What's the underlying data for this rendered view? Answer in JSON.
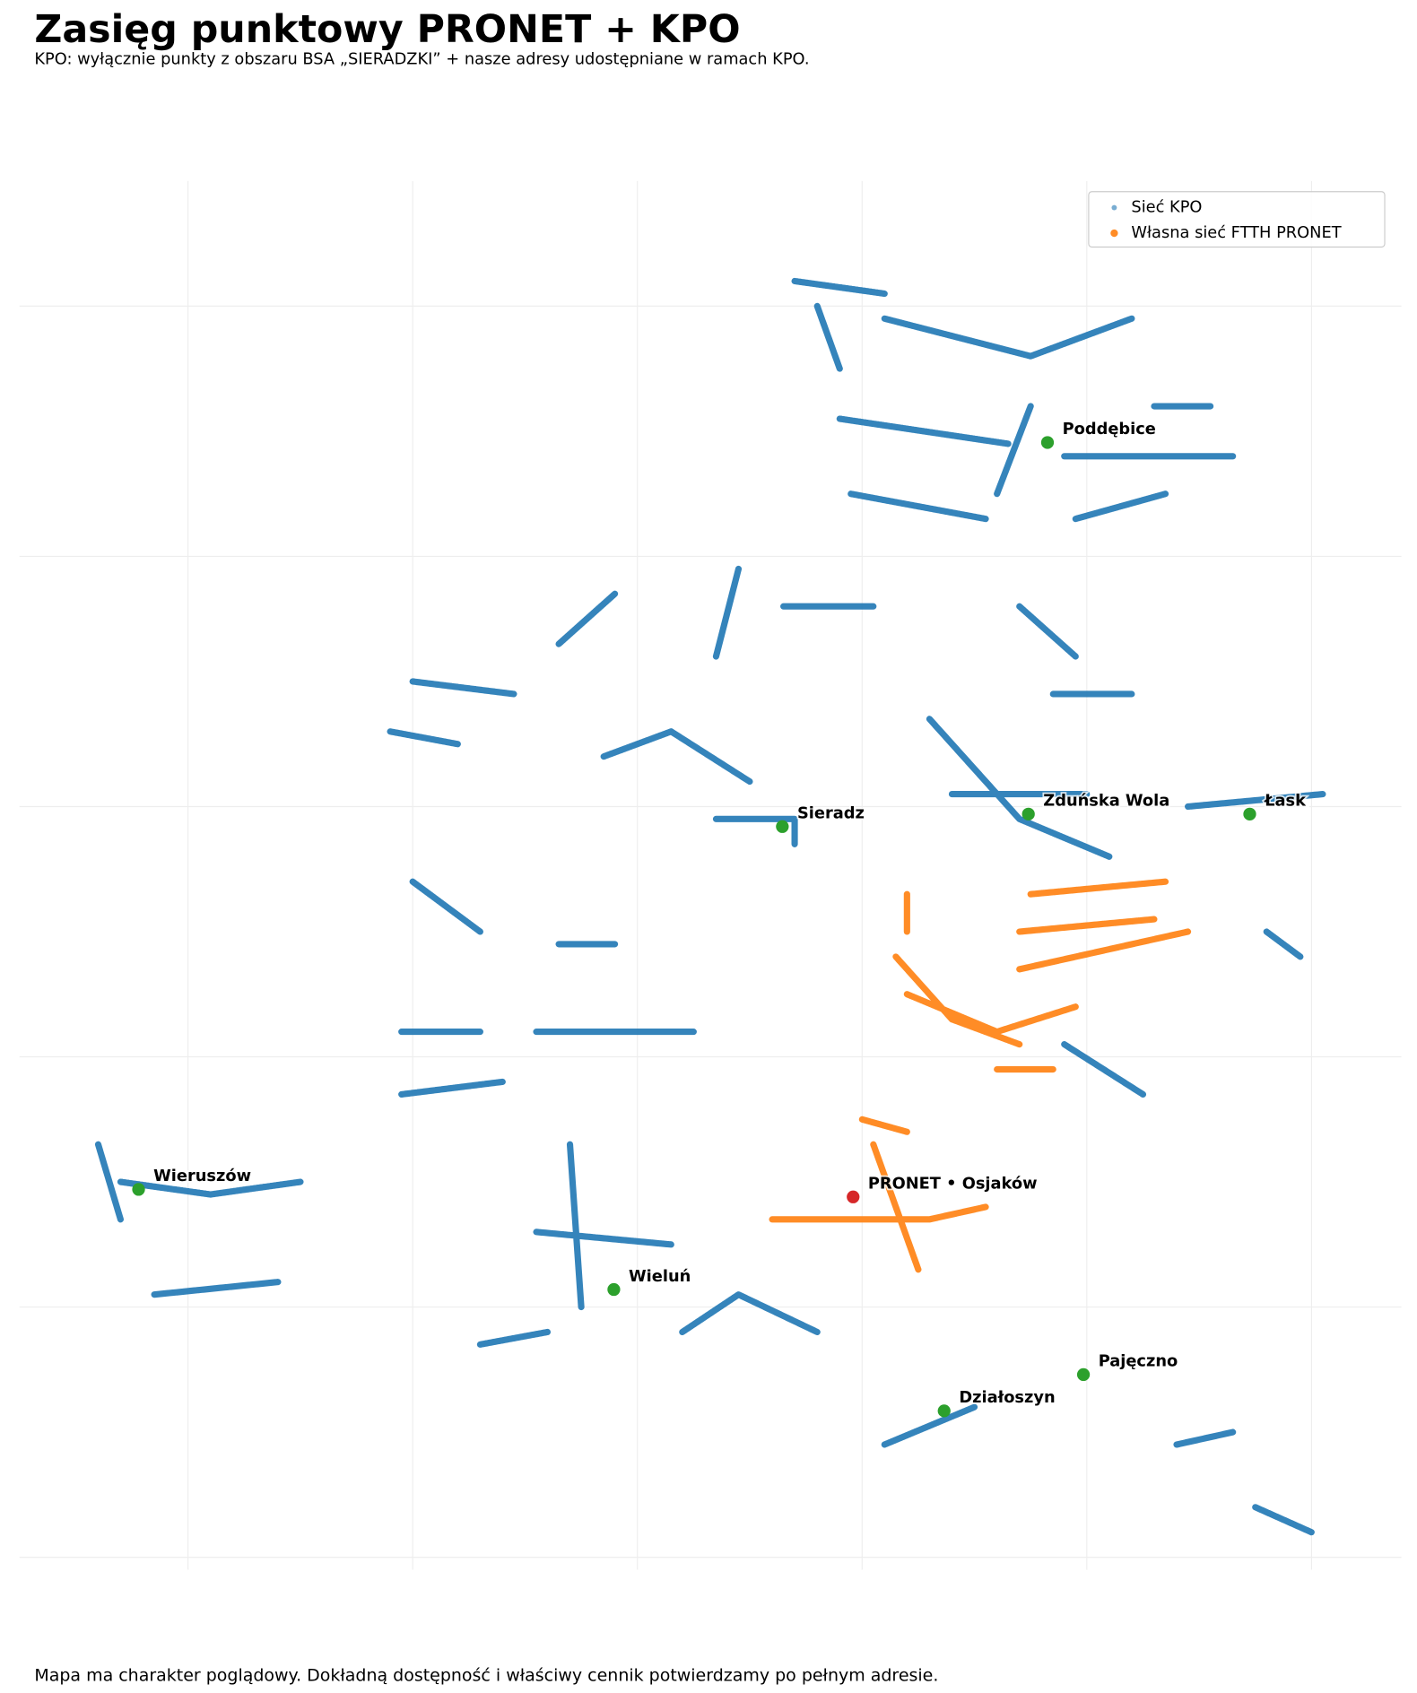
{
  "chart_data": {
    "type": "map",
    "title": "Zasięg punktowy PRONET + KPO",
    "subtitle": "KPO: wyłącznie punkty z obszaru BSA „SIERADZKI” + nasze adresy udostępniane w ramach KPO.",
    "footer": "Mapa ma charakter poglądowy. Dokładną dostępność i właściwy cennik potwierdzamy po pełnym adresie.",
    "xlim": [
      18.05,
      19.28
    ],
    "ylim": [
      50.99,
      52.1
    ],
    "xticks": [
      18.2,
      18.4,
      18.6,
      18.8,
      19.0,
      19.2
    ],
    "yticks": [
      51.0,
      51.2,
      51.4,
      51.6,
      51.8,
      52.0
    ],
    "grid": true,
    "legend": "upper right",
    "series": [
      {
        "name": "Sieć KPO",
        "color": "#1f77b4",
        "x": [
          18.74,
          18.82,
          null,
          18.76,
          18.78,
          null,
          18.82,
          18.95,
          19.04,
          null,
          18.78,
          18.93,
          null,
          18.79,
          18.91,
          null,
          18.95,
          18.92,
          null,
          18.98,
          19.13,
          null,
          18.99,
          19.07,
          null,
          19.06,
          19.11,
          null,
          18.69,
          18.67,
          null,
          18.73,
          18.81,
          null,
          18.58,
          18.53,
          null,
          18.4,
          18.49,
          null,
          18.38,
          18.44,
          null,
          18.57,
          18.63,
          18.7,
          null,
          18.67,
          18.74,
          18.74,
          null,
          18.86,
          18.94,
          19.02,
          null,
          18.88,
          19.0,
          null,
          18.94,
          18.99,
          null,
          18.97,
          19.04,
          null,
          19.09,
          19.21,
          null,
          18.4,
          18.46,
          null,
          18.53,
          18.58,
          null,
          18.39,
          18.46,
          null,
          18.51,
          18.65,
          null,
          18.39,
          18.48,
          null,
          18.98,
          19.05,
          null,
          19.16,
          19.19,
          null,
          18.12,
          18.14,
          null,
          18.14,
          18.22,
          18.3,
          null,
          18.51,
          18.63,
          null,
          18.54,
          18.55,
          null,
          18.17,
          18.28,
          null,
          18.46,
          18.52,
          null,
          18.64,
          18.69,
          18.76,
          null,
          18.82,
          18.9,
          null,
          19.08,
          19.13,
          null,
          19.15,
          19.2
        ],
        "y": [
          52.02,
          52.01,
          null,
          52.0,
          51.95,
          null,
          51.99,
          51.96,
          51.99,
          null,
          51.91,
          51.89,
          null,
          51.85,
          51.83,
          null,
          51.92,
          51.85,
          null,
          51.88,
          51.88,
          null,
          51.83,
          51.85,
          null,
          51.92,
          51.92,
          null,
          51.79,
          51.72,
          null,
          51.76,
          51.76,
          null,
          51.77,
          51.73,
          null,
          51.7,
          51.69,
          null,
          51.66,
          51.65,
          null,
          51.64,
          51.66,
          51.62,
          null,
          51.59,
          51.59,
          51.57,
          null,
          51.67,
          51.59,
          51.56,
          null,
          51.61,
          51.61,
          null,
          51.76,
          51.72,
          null,
          51.69,
          51.69,
          null,
          51.6,
          51.61,
          null,
          51.54,
          51.5,
          null,
          51.49,
          51.49,
          null,
          51.42,
          51.42,
          null,
          51.42,
          51.42,
          null,
          51.37,
          51.38,
          null,
          51.41,
          51.37,
          null,
          51.5,
          51.48,
          null,
          51.33,
          51.27,
          null,
          51.3,
          51.29,
          51.3,
          null,
          51.26,
          51.25,
          null,
          51.33,
          51.2,
          null,
          51.21,
          51.22,
          null,
          51.17,
          51.18,
          null,
          51.18,
          51.21,
          51.18,
          null,
          51.09,
          51.12,
          null,
          51.09,
          51.1,
          null,
          51.04,
          51.02
        ]
      },
      {
        "name": "Własna sieć FTTH PRONET",
        "color": "#ff7f0e",
        "x": [
          18.95,
          19.07,
          null,
          18.94,
          19.06,
          null,
          18.94,
          19.09,
          null,
          18.83,
          18.88,
          18.94,
          null,
          18.84,
          18.92,
          18.99,
          null,
          18.92,
          18.97,
          null,
          18.84,
          18.84,
          null,
          18.81,
          18.83,
          18.85,
          null,
          18.72,
          18.86,
          18.91,
          null,
          18.8,
          18.84
        ],
        "y": [
          51.53,
          51.54,
          null,
          51.5,
          51.51,
          null,
          51.47,
          51.5,
          null,
          51.48,
          51.43,
          51.41,
          null,
          51.45,
          51.42,
          51.44,
          null,
          51.39,
          51.39,
          null,
          51.53,
          51.5,
          null,
          51.33,
          51.28,
          51.23,
          null,
          51.27,
          51.27,
          51.28,
          null,
          51.35,
          51.34
        ]
      }
    ],
    "places": [
      {
        "label": "Poddębice",
        "lon": 18.965,
        "lat": 51.891,
        "color": "#2ca02c"
      },
      {
        "label": "Sieradz",
        "lon": 18.729,
        "lat": 51.584,
        "color": "#2ca02c"
      },
      {
        "label": "Zduńska Wola",
        "lon": 18.948,
        "lat": 51.594,
        "color": "#2ca02c"
      },
      {
        "label": "Łask",
        "lon": 19.145,
        "lat": 51.594,
        "color": "#2ca02c"
      },
      {
        "label": "Wieruszów",
        "lon": 18.156,
        "lat": 51.294,
        "color": "#2ca02c"
      },
      {
        "label": "PRONET • Osjaków",
        "lon": 18.792,
        "lat": 51.288,
        "color": "#d62728"
      },
      {
        "label": "Wieluń",
        "lon": 18.579,
        "lat": 51.214,
        "color": "#2ca02c"
      },
      {
        "label": "Pajęczno",
        "lon": 18.997,
        "lat": 51.146,
        "color": "#2ca02c"
      },
      {
        "label": "Działoszyn",
        "lon": 18.873,
        "lat": 51.117,
        "color": "#2ca02c"
      }
    ]
  }
}
